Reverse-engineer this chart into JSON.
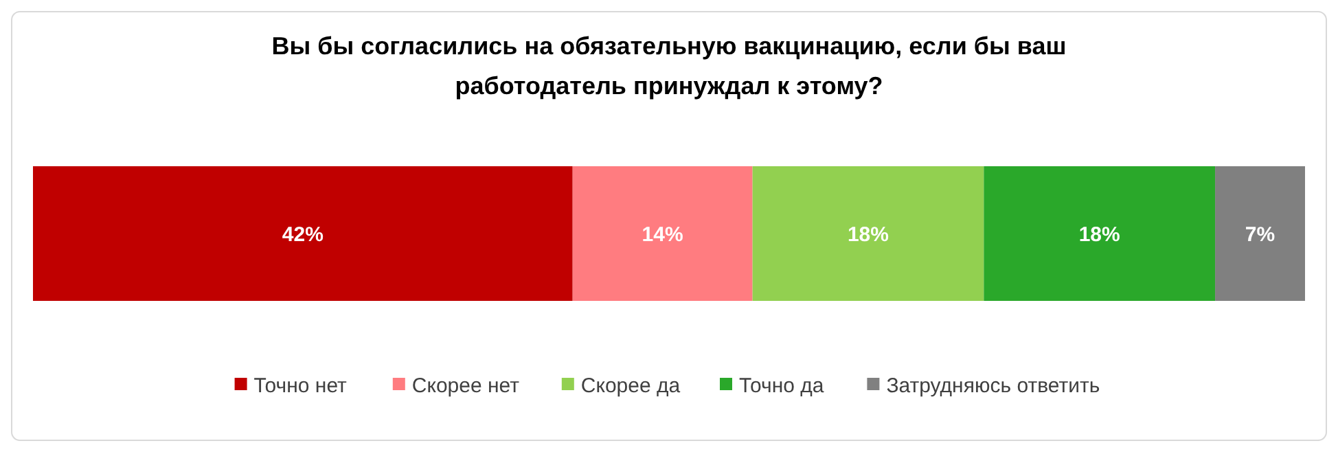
{
  "chart_data": {
    "type": "bar",
    "title": "Вы бы согласились на обязательную вакцинацию, если бы ваш работодатель принуждал к этому?",
    "orientation": "horizontal",
    "stacked": true,
    "categories": [
      null
    ],
    "legend": "bottom",
    "series": [
      {
        "name": "Точно нет",
        "color": "#c00000",
        "values": [
          42
        ],
        "value_labels": [
          "42%"
        ]
      },
      {
        "name": "Скорее нет",
        "color": "#ff7c80",
        "values": [
          14
        ],
        "value_labels": [
          "14%"
        ]
      },
      {
        "name": "Скорее да",
        "color": "#92d050",
        "values": [
          18
        ],
        "value_labels": [
          "18%"
        ]
      },
      {
        "name": "Точно да",
        "color": "#2aa82a",
        "values": [
          18
        ],
        "value_labels": [
          "18%"
        ]
      },
      {
        "name": "Затрудняюсь ответить",
        "color": "#808080",
        "values": [
          7
        ],
        "value_labels": [
          "7%"
        ]
      }
    ]
  }
}
